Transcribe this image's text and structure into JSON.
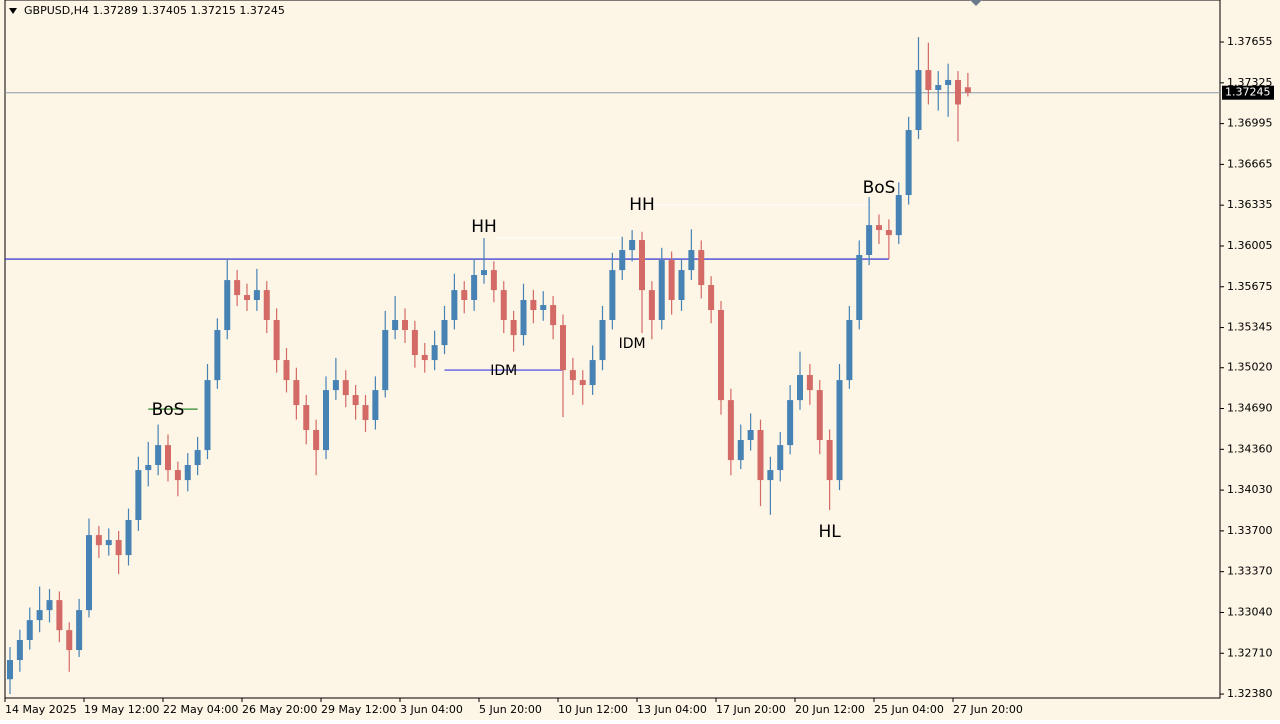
{
  "chart_data": {
    "type": "candlestick",
    "title": "GBPUSD,H4  1.37289 1.37405 1.37215 1.37245",
    "background": "#fdf5e6",
    "up_color": "#4682b4",
    "down_color": "#d46a66",
    "categories": [
      "14 May 2025",
      null,
      null,
      null,
      null,
      null,
      null,
      null,
      "19 May 12:00",
      null,
      null,
      null,
      null,
      null,
      null,
      null,
      "22 May 04:00",
      null,
      null,
      null,
      null,
      null,
      null,
      null,
      "26 May 20:00",
      null,
      null,
      null,
      null,
      null,
      null,
      null,
      "29 May 12:00",
      null,
      null,
      null,
      null,
      null,
      null,
      null,
      "3 Jun 04:00",
      null,
      null,
      null,
      null,
      null,
      null,
      null,
      "5 Jun 20:00",
      null,
      null,
      null,
      null,
      null,
      null,
      null,
      "10 Jun 12:00",
      null,
      null,
      null,
      null,
      null,
      null,
      null,
      "13 Jun 04:00",
      null,
      null,
      null,
      null,
      null,
      null,
      null,
      "17 Jun 20:00",
      null,
      null,
      null,
      null,
      null,
      null,
      null,
      "20 Jun 12:00",
      null,
      null,
      null,
      null,
      null,
      null,
      null,
      "25 Jun 04:00",
      null,
      null,
      null,
      null,
      null,
      null,
      null,
      "27 Jun 20:00",
      null
    ],
    "candles": [
      [
        1.325,
        1.3276,
        1.3238,
        1.32655
      ],
      [
        1.32655,
        1.329,
        1.3256,
        1.32817
      ],
      [
        1.32817,
        1.3308,
        1.3274,
        1.32978
      ],
      [
        1.32978,
        1.3325,
        1.3288,
        1.33059
      ],
      [
        1.33059,
        1.3323,
        1.3296,
        1.3314
      ],
      [
        1.3314,
        1.3321,
        1.328,
        1.32897
      ],
      [
        1.32897,
        1.3296,
        1.3256,
        1.32736
      ],
      [
        1.32736,
        1.3315,
        1.3268,
        1.33059
      ],
      [
        1.33059,
        1.338,
        1.33,
        1.33666
      ],
      [
        1.33666,
        1.3374,
        1.3348,
        1.33585
      ],
      [
        1.33585,
        1.3372,
        1.335,
        1.33626
      ],
      [
        1.33626,
        1.337,
        1.3335,
        1.33504
      ],
      [
        1.33504,
        1.3388,
        1.3342,
        1.33788
      ],
      [
        1.33788,
        1.343,
        1.337,
        1.34192
      ],
      [
        1.34192,
        1.3442,
        1.3406,
        1.34233
      ],
      [
        1.34233,
        1.3456,
        1.3415,
        1.34394
      ],
      [
        1.34394,
        1.3448,
        1.341,
        1.34192
      ],
      [
        1.34192,
        1.3426,
        1.3398,
        1.34111
      ],
      [
        1.34111,
        1.3433,
        1.3402,
        1.34233
      ],
      [
        1.34233,
        1.3446,
        1.3415,
        1.34354
      ],
      [
        1.34354,
        1.3505,
        1.3428,
        1.3492
      ],
      [
        1.3492,
        1.3542,
        1.3485,
        1.35325
      ],
      [
        1.35325,
        1.359,
        1.3525,
        1.35729
      ],
      [
        1.35729,
        1.3581,
        1.3552,
        1.35608
      ],
      [
        1.35608,
        1.357,
        1.3548,
        1.35568
      ],
      [
        1.35568,
        1.3582,
        1.3548,
        1.35648
      ],
      [
        1.35648,
        1.3572,
        1.353,
        1.35406
      ],
      [
        1.35406,
        1.355,
        1.3498,
        1.35082
      ],
      [
        1.35082,
        1.3518,
        1.3482,
        1.3492
      ],
      [
        1.3492,
        1.3502,
        1.346,
        1.34718
      ],
      [
        1.34718,
        1.348,
        1.344,
        1.34516
      ],
      [
        1.34516,
        1.346,
        1.3415,
        1.34354
      ],
      [
        1.34354,
        1.3495,
        1.3428,
        1.34839
      ],
      [
        1.34839,
        1.351,
        1.3476,
        1.3492
      ],
      [
        1.3492,
        1.35,
        1.347,
        1.34799
      ],
      [
        1.34799,
        1.3488,
        1.346,
        1.34718
      ],
      [
        1.34718,
        1.348,
        1.345,
        1.34597
      ],
      [
        1.34597,
        1.3495,
        1.3452,
        1.34839
      ],
      [
        1.34839,
        1.3548,
        1.3478,
        1.35325
      ],
      [
        1.35325,
        1.356,
        1.3525,
        1.35406
      ],
      [
        1.35406,
        1.355,
        1.3522,
        1.35325
      ],
      [
        1.35325,
        1.354,
        1.3502,
        1.35123
      ],
      [
        1.35123,
        1.3522,
        1.3498,
        1.35082
      ],
      [
        1.35082,
        1.3532,
        1.35,
        1.35203
      ],
      [
        1.35203,
        1.3552,
        1.3513,
        1.35406
      ],
      [
        1.35406,
        1.3578,
        1.3533,
        1.35648
      ],
      [
        1.35648,
        1.3572,
        1.3546,
        1.35568
      ],
      [
        1.35568,
        1.359,
        1.3548,
        1.3577
      ],
      [
        1.3577,
        1.36069,
        1.357,
        1.3581
      ],
      [
        1.3581,
        1.3588,
        1.3555,
        1.35648
      ],
      [
        1.35648,
        1.3572,
        1.353,
        1.35406
      ],
      [
        1.35406,
        1.3548,
        1.3515,
        1.35284
      ],
      [
        1.35284,
        1.357,
        1.352,
        1.35568
      ],
      [
        1.35568,
        1.3565,
        1.3538,
        1.35487
      ],
      [
        1.35487,
        1.3564,
        1.354,
        1.35527
      ],
      [
        1.35527,
        1.356,
        1.3525,
        1.35365
      ],
      [
        1.35365,
        1.3545,
        1.3462,
        1.35001
      ],
      [
        1.35001,
        1.351,
        1.348,
        1.3492
      ],
      [
        1.3492,
        1.35,
        1.3472,
        1.3488
      ],
      [
        1.3488,
        1.352,
        1.348,
        1.35082
      ],
      [
        1.35082,
        1.3552,
        1.35,
        1.35406
      ],
      [
        1.35406,
        1.3595,
        1.3533,
        1.3581
      ],
      [
        1.3581,
        1.3608,
        1.3573,
        1.35972
      ],
      [
        1.35972,
        1.36134,
        1.3588,
        1.36053
      ],
      [
        1.36053,
        1.3612,
        1.353,
        1.35648
      ],
      [
        1.35648,
        1.3572,
        1.3525,
        1.35406
      ],
      [
        1.35406,
        1.3599,
        1.3533,
        1.35891
      ],
      [
        1.35891,
        1.3596,
        1.3545,
        1.35568
      ],
      [
        1.35568,
        1.359,
        1.3548,
        1.3581
      ],
      [
        1.3581,
        1.3614,
        1.3573,
        1.35972
      ],
      [
        1.35972,
        1.3605,
        1.3558,
        1.35689
      ],
      [
        1.35689,
        1.3576,
        1.3538,
        1.35487
      ],
      [
        1.35487,
        1.3556,
        1.3464,
        1.34758
      ],
      [
        1.34758,
        1.3485,
        1.3415,
        1.34273
      ],
      [
        1.34273,
        1.3456,
        1.342,
        1.34435
      ],
      [
        1.34435,
        1.3465,
        1.3435,
        1.34516
      ],
      [
        1.34516,
        1.346,
        1.339,
        1.34111
      ],
      [
        1.34111,
        1.343,
        1.3383,
        1.34192
      ],
      [
        1.34192,
        1.345,
        1.341,
        1.34394
      ],
      [
        1.34394,
        1.3488,
        1.3432,
        1.34758
      ],
      [
        1.34758,
        1.3515,
        1.3468,
        1.34961
      ],
      [
        1.34961,
        1.3505,
        1.3472,
        1.34839
      ],
      [
        1.34839,
        1.3492,
        1.3432,
        1.34435
      ],
      [
        1.34435,
        1.3452,
        1.33868,
        1.34111
      ],
      [
        1.34111,
        1.3505,
        1.3403,
        1.3492
      ],
      [
        1.3492,
        1.3552,
        1.3485,
        1.35406
      ],
      [
        1.35406,
        1.3605,
        1.3533,
        1.35932
      ],
      [
        1.35932,
        1.364,
        1.3585,
        1.36174
      ],
      [
        1.36174,
        1.3626,
        1.3602,
        1.36134
      ],
      [
        1.36134,
        1.3622,
        1.359,
        1.36093
      ],
      [
        1.36093,
        1.3652,
        1.3602,
        1.36417
      ],
      [
        1.36417,
        1.3705,
        1.3634,
        1.36943
      ],
      [
        1.36943,
        1.37695,
        1.3687,
        1.37428
      ],
      [
        1.37428,
        1.3765,
        1.3715,
        1.37267
      ],
      [
        1.37267,
        1.3742,
        1.371,
        1.37307
      ],
      [
        1.37307,
        1.3748,
        1.3705,
        1.37348
      ],
      [
        1.37348,
        1.3742,
        1.3685,
        1.3715
      ],
      [
        1.37289,
        1.37405,
        1.37215,
        1.37245
      ]
    ],
    "ylim": [
      1.32348,
      1.37995
    ],
    "yticks": [
      1.37655,
      1.37325,
      1.36995,
      1.36665,
      1.36335,
      1.36005,
      1.35675,
      1.35345,
      {
        "value": 1.3502,
        "label": "1.35020"
      },
      {
        "value": 1.3469,
        "label": "1.34690"
      },
      {
        "value": 1.3436,
        "label": "1.34360"
      },
      {
        "value": 1.3403,
        "label": "1.34030"
      },
      {
        "value": 1.337,
        "label": "1.33700"
      },
      {
        "value": 1.3337,
        "label": "1.33370"
      },
      {
        "value": 1.3304,
        "label": "1.33040"
      },
      {
        "value": 1.3271,
        "label": "1.32710"
      },
      {
        "value": 1.3238,
        "label": "1.32380"
      }
    ],
    "last_price": 1.37245,
    "levels": [
      {
        "price": 1.35899,
        "from": 0,
        "to": 89,
        "color": "#1f1fd0"
      },
      {
        "price": 1.35001,
        "from": 44,
        "to": 56,
        "color": "#3a3ae0"
      },
      {
        "price": 1.34685,
        "from": 14,
        "to": 19,
        "color": "#2e8b2e"
      },
      {
        "price": 1.36069,
        "from": 49,
        "to": 62,
        "color": "#ffffff"
      },
      {
        "price": 1.36336,
        "from": 65,
        "to": 87,
        "color": "#ffffff"
      }
    ],
    "labels": [
      {
        "text": "HH",
        "index": 48,
        "price": 1.36158,
        "color": "#111111"
      },
      {
        "text": "HH",
        "index": 64,
        "price": 1.36336,
        "color": "#111111"
      },
      {
        "text": "HL",
        "index": 83,
        "price": 1.3369,
        "color": "#111111"
      },
      {
        "text": "BoS",
        "index": 16,
        "price": 1.34677,
        "color": "#2e8b2e"
      },
      {
        "text": "BoS",
        "index": 88,
        "price": 1.36474,
        "color": "#2e8b2e"
      },
      {
        "text": "IDM",
        "index": 50,
        "price": 1.34993,
        "color": "#3a3ae0"
      },
      {
        "text": "IDM",
        "index": 63,
        "price": 1.35212,
        "color": "#3a3ae0"
      }
    ]
  }
}
